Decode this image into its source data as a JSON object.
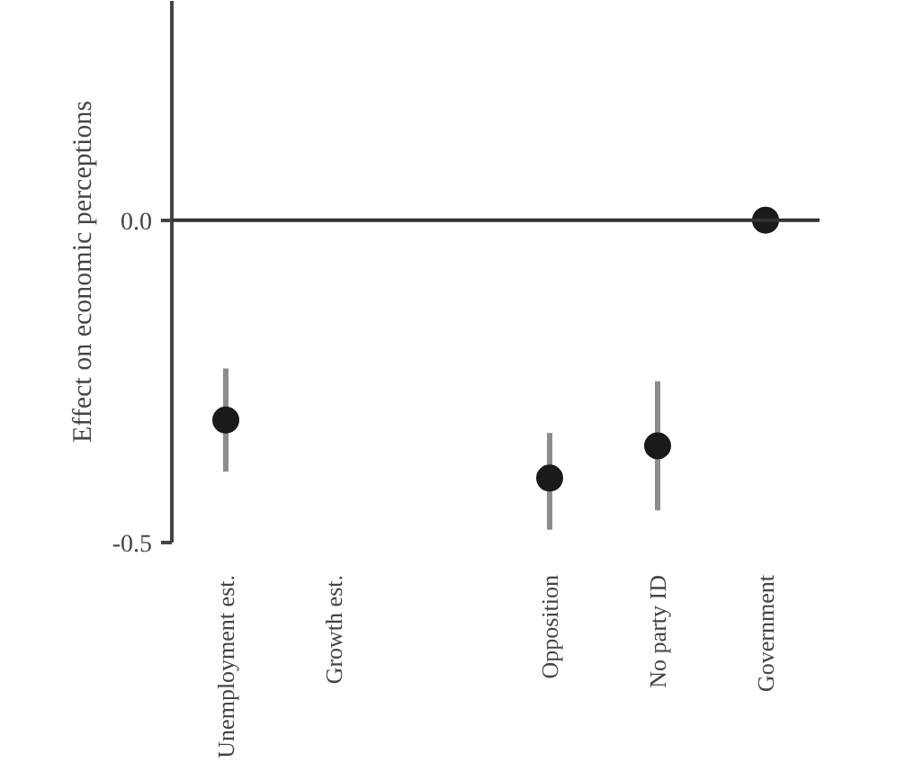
{
  "chart_data": {
    "type": "scatter",
    "ylabel": "Effect on economic perceptions",
    "categories": [
      "Unemployment est.",
      "Growth est.",
      null,
      "Opposition",
      "No party ID",
      "Government"
    ],
    "values": [
      -0.31,
      null,
      null,
      -0.4,
      -0.35,
      0.0
    ],
    "errors": [
      [
        -0.39,
        -0.23
      ],
      null,
      null,
      [
        -0.48,
        -0.33
      ],
      [
        -0.45,
        -0.25
      ],
      null
    ],
    "color": "#1a1a1a",
    "ylim": [
      -0.5,
      0.34
    ],
    "yticks": [
      {
        "value": 0,
        "label": "0.0"
      },
      -0.5
    ],
    "ref_lines": [
      {
        "axis": "y",
        "value": 0,
        "color": "#333333"
      }
    ],
    "marker": "circle",
    "grid": false
  }
}
